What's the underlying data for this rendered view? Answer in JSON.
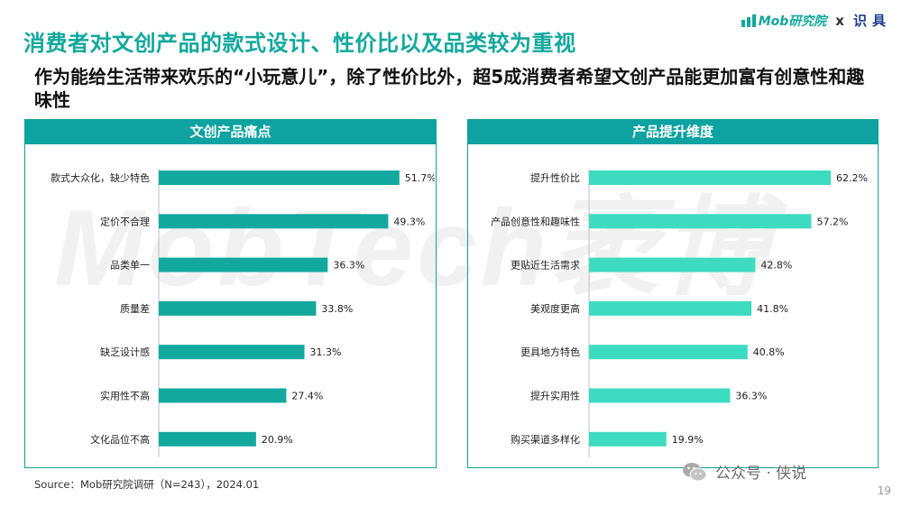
{
  "header": {
    "title": "消费者对文创产品的款式设计、性价比以及品类较为重视",
    "subtitle": "作为能给生活带来欢乐的“小玩意儿”，除了性价比外，超5成消费者希望文创产品能更加富有创意性和趣味性"
  },
  "brand": {
    "mob": "Mob研究院",
    "x": "x",
    "shiju": "识具"
  },
  "watermark": "MobTech袤博",
  "chart_data": [
    {
      "type": "bar",
      "orientation": "horizontal",
      "title": "文创产品痛点",
      "categories": [
        "款式大众化，缺少特色",
        "定价不合理",
        "品类单一",
        "质量差",
        "缺乏设计感",
        "实用性不高",
        "文化品位不高"
      ],
      "values": [
        51.7,
        49.3,
        36.3,
        33.8,
        31.3,
        27.4,
        20.9
      ],
      "labels": [
        "51.7%",
        "49.3%",
        "36.3%",
        "33.8%",
        "31.3%",
        "27.4%",
        "20.9%"
      ],
      "unit": "%",
      "xlim": [
        0,
        62.2
      ],
      "color": "#12a89d",
      "grid": false
    },
    {
      "type": "bar",
      "orientation": "horizontal",
      "title": "产品提升维度",
      "categories": [
        "提升性价比",
        "产品创意性和趣味性",
        "更贴近生活需求",
        "美观度更高",
        "更具地方特色",
        "提升实用性",
        "购买渠道多样化"
      ],
      "values": [
        62.2,
        57.2,
        42.8,
        41.8,
        40.8,
        36.3,
        19.9
      ],
      "labels": [
        "62.2%",
        "57.2%",
        "42.8%",
        "41.8%",
        "40.8%",
        "36.3%",
        "19.9%"
      ],
      "unit": "%",
      "xlim": [
        0,
        62.2
      ],
      "color": "#3ddbbf",
      "grid": false
    }
  ],
  "footer": {
    "source": "Source：Mob研究院调研（N=243），2024.01",
    "wechat": "公众号 · 侠说",
    "page": "19"
  }
}
